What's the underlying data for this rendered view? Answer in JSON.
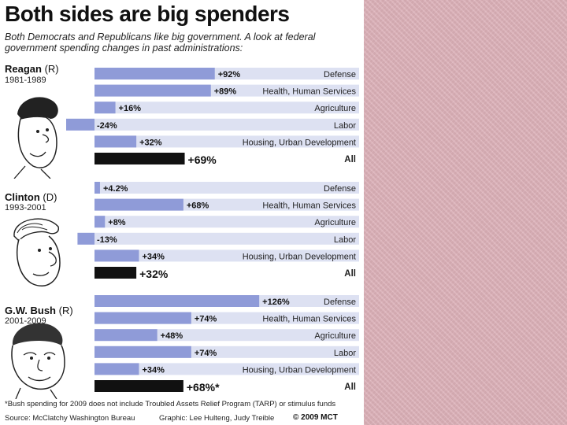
{
  "title": "Both sides are big spenders",
  "subtitle": "Both Democrats and Republicans like big government. A look at federal government spending changes in past administrations:",
  "colors": {
    "bar": "#8f9bd8",
    "track": "#dde1f2",
    "total_bar": "#111111",
    "background_right": "#dcb0b8"
  },
  "chart_data": [
    {
      "type": "bar",
      "president": "Reagan",
      "party": "(R)",
      "years": "1981-1989",
      "categories": [
        "Defense",
        "Health, Human Services",
        "Agriculture",
        "Labor",
        "Housing, Urban Development",
        "All"
      ],
      "values": [
        92,
        89,
        16,
        -24,
        32,
        69
      ],
      "labels": [
        "+92%",
        "+89%",
        "+16%",
        "-24%",
        "+32%",
        "+69%"
      ],
      "xlim": [
        -25,
        150
      ]
    },
    {
      "type": "bar",
      "president": "Clinton",
      "party": "(D)",
      "years": "1993-2001",
      "categories": [
        "Defense",
        "Health, Human Services",
        "Agriculture",
        "Labor",
        "Housing, Urban Development",
        "All"
      ],
      "values": [
        4.2,
        68,
        8,
        -13,
        34,
        32
      ],
      "labels": [
        "+4.2%",
        "+68%",
        "+8%",
        "-13%",
        "+34%",
        "+32%"
      ],
      "xlim": [
        -25,
        150
      ]
    },
    {
      "type": "bar",
      "president": "G.W. Bush",
      "party": "(R)",
      "years": "2001-2009",
      "categories": [
        "Defense",
        "Health, Human Services",
        "Agriculture",
        "Labor",
        "Housing, Urban Development",
        "All"
      ],
      "values": [
        126,
        74,
        48,
        74,
        34,
        68
      ],
      "labels": [
        "+126%",
        "+74%",
        "+48%",
        "+74%",
        "+34%",
        "+68%*"
      ],
      "xlim": [
        -25,
        150
      ]
    }
  ],
  "footnote": "*Bush spending for 2009 does not include Troubled Assets Relief Program (TARP) or stimulus funds",
  "source": "Source: McClatchy Washington Bureau",
  "graphic_credit": "Graphic: Lee Hulteng, Judy Treible",
  "copyright": "© 2009 MCT"
}
